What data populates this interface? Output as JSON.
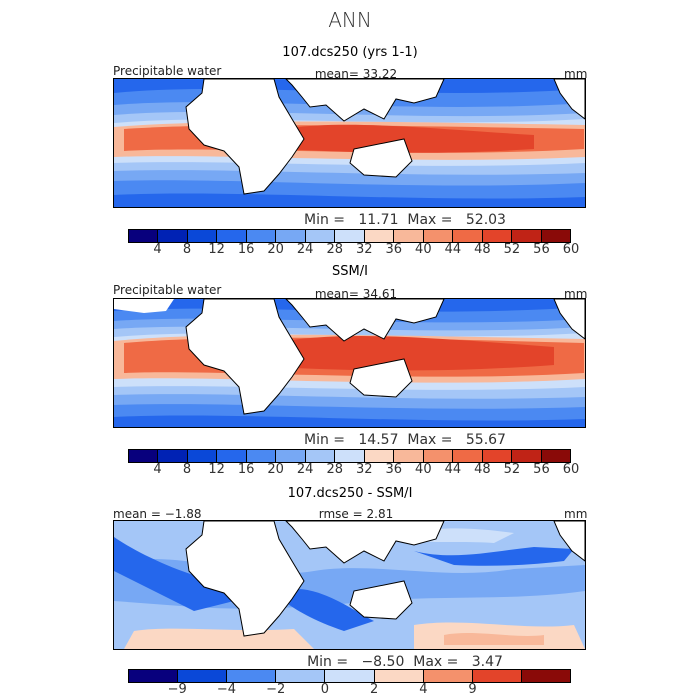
{
  "title": "ANN",
  "panels": [
    {
      "title": "107.dcs250 (yrs 1-1)",
      "header_left": "Precipitable water",
      "header_center": "mean=   33.22",
      "header_right": "mm",
      "min_label": "Min",
      "min": "11.71",
      "max_label": "Max",
      "max": "52.03",
      "colorbar_labels": [
        "4",
        "8",
        "12",
        "16",
        "20",
        "24",
        "28",
        "32",
        "36",
        "40",
        "44",
        "48",
        "52",
        "56",
        "60"
      ]
    },
    {
      "title": "SSM/I",
      "header_left": "Precipitable water",
      "header_center": "mean=   34.61",
      "header_right": "mm",
      "min_label": "Min",
      "min": "14.57",
      "max_label": "Max",
      "max": "55.67",
      "colorbar_labels": [
        "4",
        "8",
        "12",
        "16",
        "20",
        "24",
        "28",
        "32",
        "36",
        "40",
        "44",
        "48",
        "52",
        "56",
        "60"
      ]
    },
    {
      "title": "107.dcs250 - SSM/I",
      "header_left": "mean =  −1.88",
      "header_center": "rmse =   2.81",
      "header_right": "mm",
      "min_label": "Min",
      "min": "−8.50",
      "max_label": "Max",
      "max": "3.47",
      "colorbar_labels": [
        "−9",
        "−4",
        "−2",
        "0",
        "2",
        "4",
        "9"
      ]
    }
  ],
  "colors": {
    "seq": [
      "#08007d",
      "#0022b4",
      "#0a48d8",
      "#2567ec",
      "#4b89f2",
      "#77a8f4",
      "#a4c6f7",
      "#cde0fa",
      "#fbd8c4",
      "#f8b89a",
      "#f4916c",
      "#ef6a45",
      "#e3442a",
      "#c02316",
      "#8a0a08"
    ],
    "div": [
      "#08007d",
      "#0a48d8",
      "#4b89f2",
      "#a4c6f7",
      "#cde0fa",
      "#fbd8c4",
      "#f4916c",
      "#e3442a",
      "#8a0a08"
    ]
  }
}
